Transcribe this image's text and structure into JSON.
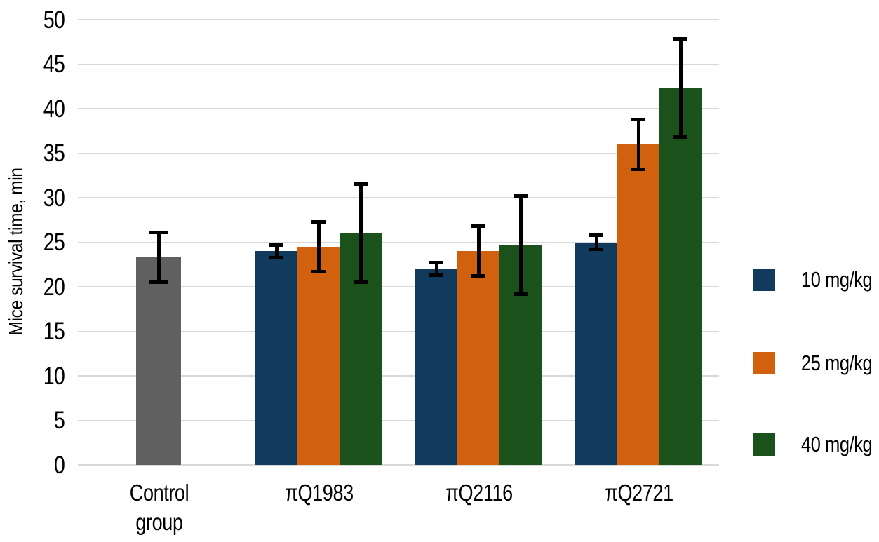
{
  "chart_data": {
    "type": "bar",
    "title": "",
    "xlabel": "",
    "ylabel": "Mice survival time, min",
    "ylim": [
      0,
      50
    ],
    "ytick_step": 5,
    "yticks": [
      0,
      5,
      10,
      15,
      20,
      25,
      30,
      35,
      40,
      45,
      50
    ],
    "grid": "horizontal",
    "legend_position": "right",
    "error_bars": true,
    "categories": [
      "Control\ngroup",
      "πQ1983",
      "πQ2116",
      "πQ2721"
    ],
    "control_bar": {
      "category_index": 0,
      "category": "Control group",
      "value": 23.3,
      "error": 3.0,
      "color": "#606060"
    },
    "series": [
      {
        "name": "10 mg/kg",
        "color": "#123A5C",
        "values": [
          null,
          24.0,
          22.0,
          25.0
        ],
        "errors": [
          null,
          0.9,
          0.9,
          1.0
        ]
      },
      {
        "name": "25 mg/kg",
        "color": "#D2610F",
        "values": [
          null,
          24.5,
          24.0,
          36.0
        ],
        "errors": [
          null,
          3.0,
          3.0,
          3.0
        ]
      },
      {
        "name": "40 mg/kg",
        "color": "#1B521C",
        "values": [
          null,
          26.0,
          24.7,
          42.3
        ],
        "errors": [
          null,
          5.7,
          5.7,
          5.7
        ]
      }
    ],
    "colors": {
      "gridline": "#D9D9D9",
      "error_bar": "#000000",
      "text": "#000000",
      "background": "#FFFFFF"
    }
  }
}
